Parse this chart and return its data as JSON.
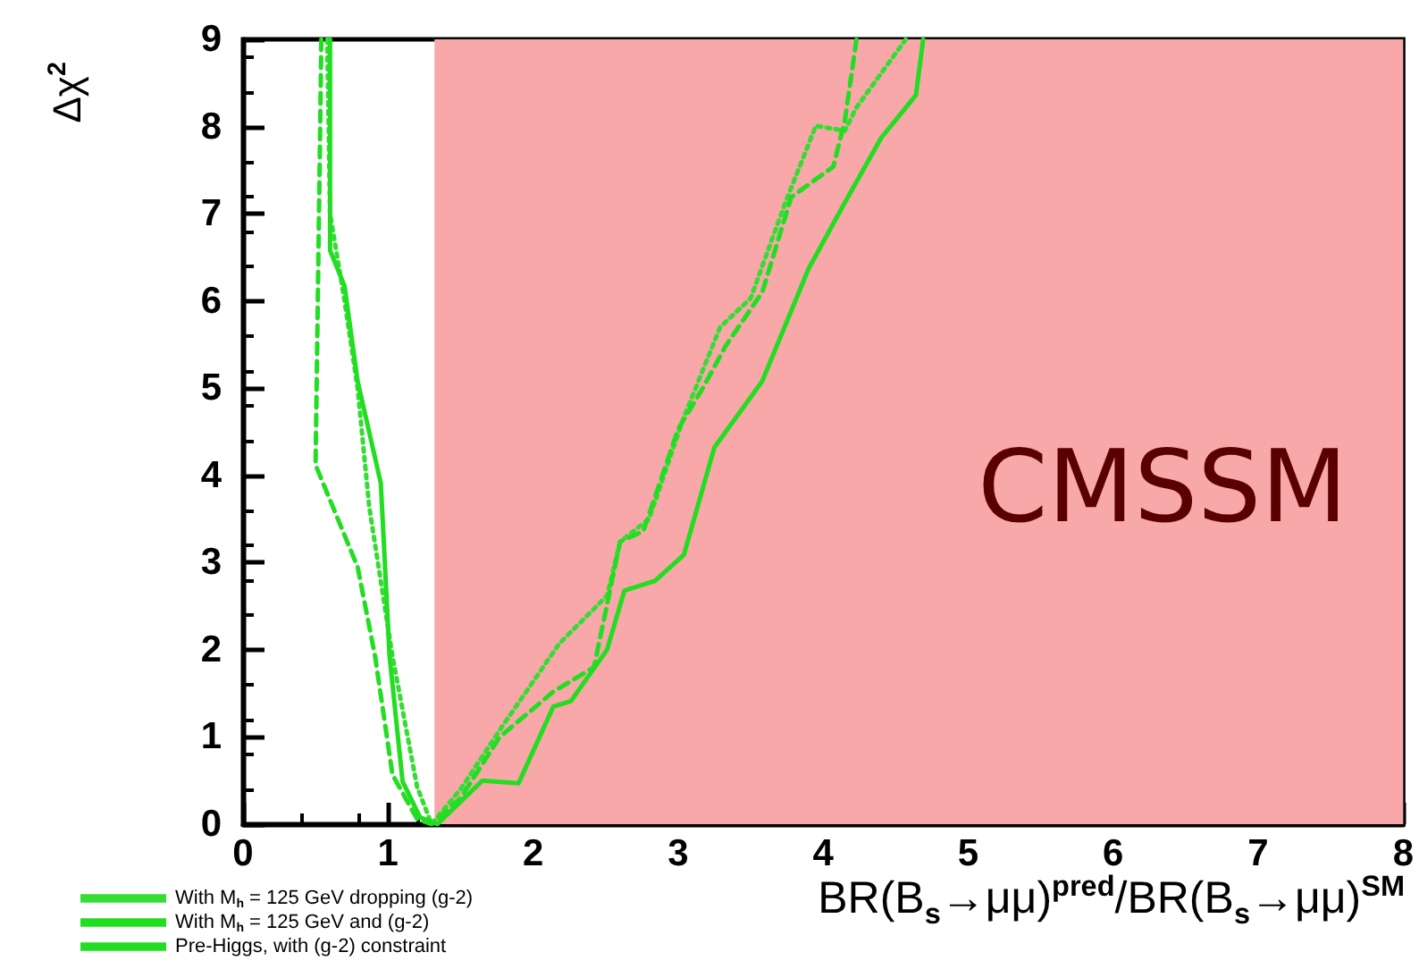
{
  "chart_data": {
    "type": "line",
    "xlabel": "BR(B$_{s}$→μμ)$^{pred}$/BR(B$_{s}$→μμ)$^{SM}$",
    "ylabel": "Δχ$^{2}$",
    "xlim": [
      0,
      8
    ],
    "xticks": [
      0,
      1,
      2,
      3,
      4,
      5,
      6,
      7,
      8
    ],
    "ylim": [
      0,
      9
    ],
    "yticks": [
      0,
      1,
      2,
      3,
      4,
      5,
      6,
      7,
      8,
      9
    ],
    "grid": false,
    "legend": "bottom left",
    "marker": "none",
    "bands": [
      {
        "axis": "x",
        "from": 1.32,
        "to": 8,
        "color": "#f8a8a8"
      }
    ],
    "annotations": [
      "CMSSM"
    ],
    "series": [
      {
        "name": "With M$_{h}$ = 125 GeV dropping (g-2)",
        "color": "#33dd33",
        "line_style": "dotted",
        "x": [
          0.58,
          0.6,
          0.7,
          0.79,
          0.87,
          1.03,
          1.2,
          1.3,
          1.5,
          1.77,
          2.18,
          2.51,
          2.6,
          2.8,
          3.04,
          3.29,
          3.5,
          3.74,
          3.95,
          4.15,
          4.23,
          4.57
        ],
        "values": [
          9,
          7,
          6,
          5,
          3.64,
          1.93,
          0.43,
          0,
          0.4,
          1.08,
          2.07,
          2.62,
          3.24,
          3.5,
          4.67,
          5.7,
          6.03,
          7.13,
          8.01,
          7.95,
          8.22,
          9
        ]
      },
      {
        "name": "With M$_{h}$ = 125 GeV and (g-2)",
        "color": "#22dd22",
        "line_style": "solid",
        "x": [
          0.6,
          0.6,
          0.7,
          0.79,
          0.95,
          1.01,
          1.1,
          1.22,
          1.34,
          1.65,
          1.9,
          2.14,
          2.26,
          2.51,
          2.63,
          2.84,
          3.04,
          3.25,
          3.58,
          3.9,
          4.15,
          4.4,
          4.64,
          4.69
        ],
        "values": [
          9,
          6.58,
          6.17,
          5.08,
          3.91,
          1.93,
          0.49,
          0.08,
          0,
          0.5,
          0.47,
          1.35,
          1.41,
          2,
          2.68,
          2.79,
          3.09,
          4.32,
          5.08,
          6.37,
          7.13,
          7.87,
          8.36,
          9
        ]
      },
      {
        "name": "Pre-Higgs, with (g-2) constraint",
        "color": "#22dd22",
        "line_style": "dashed",
        "x": [
          0.54,
          0.5,
          0.79,
          0.91,
          1.03,
          1.2,
          1.3,
          1.5,
          1.77,
          2.14,
          2.42,
          2.6,
          2.76,
          3,
          3.17,
          3.33,
          3.58,
          3.78,
          4.07,
          4.15,
          4.23
        ],
        "values": [
          9,
          4.12,
          2.95,
          1.93,
          0.57,
          0.06,
          0,
          0.3,
          1,
          1.52,
          1.8,
          3.24,
          3.36,
          4.53,
          5,
          5.49,
          6.1,
          7.19,
          7.54,
          8.07,
          9
        ]
      }
    ]
  }
}
